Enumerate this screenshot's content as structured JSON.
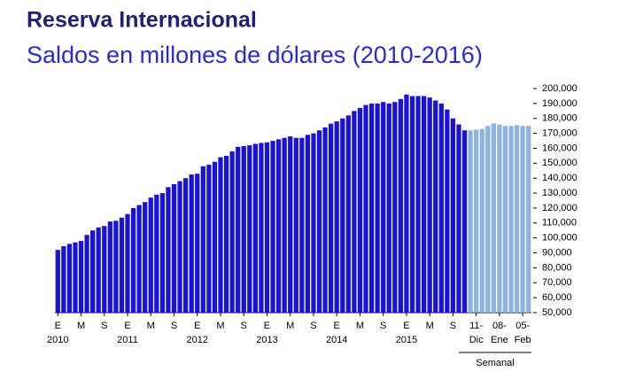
{
  "chart_data": {
    "type": "bar",
    "title": "Reserva Internacional",
    "subtitle": "Saldos en millones de dólares (2010-2016)",
    "annotation": "Semanal",
    "categories": [
      "E",
      null,
      null,
      null,
      "M",
      null,
      null,
      null,
      "S",
      null,
      null,
      null,
      "E",
      null,
      null,
      null,
      "M",
      null,
      null,
      null,
      "S",
      null,
      null,
      null,
      "E",
      null,
      null,
      null,
      "M",
      null,
      null,
      null,
      "S",
      null,
      null,
      null,
      "E",
      null,
      null,
      null,
      "M",
      null,
      null,
      null,
      "S",
      null,
      null,
      null,
      "E",
      null,
      null,
      null,
      "M",
      null,
      null,
      null,
      "S",
      null,
      null,
      null,
      "E",
      null,
      null,
      null,
      "M",
      null,
      null,
      null,
      "S",
      null,
      null,
      null,
      "11-",
      null,
      null,
      null,
      "08-",
      null,
      null,
      null,
      "05-",
      null
    ],
    "categories_row2": [
      "2010",
      null,
      null,
      null,
      null,
      null,
      null,
      null,
      null,
      null,
      null,
      null,
      "2011",
      null,
      null,
      null,
      null,
      null,
      null,
      null,
      null,
      null,
      null,
      null,
      "2012",
      null,
      null,
      null,
      null,
      null,
      null,
      null,
      null,
      null,
      null,
      null,
      "2013",
      null,
      null,
      null,
      null,
      null,
      null,
      null,
      null,
      null,
      null,
      null,
      "2014",
      null,
      null,
      null,
      null,
      null,
      null,
      null,
      null,
      null,
      null,
      null,
      "2015",
      null,
      null,
      null,
      null,
      null,
      null,
      null,
      null,
      null,
      null,
      null,
      "Dic",
      null,
      null,
      null,
      "Ene",
      null,
      null,
      null,
      "Feb",
      null
    ],
    "series": [
      {
        "color": "#1a12d6",
        "values": [
          92000,
          94500,
          96000,
          97000,
          98000,
          102000,
          105000,
          107000,
          108000,
          111000,
          111500,
          113600,
          116000,
          120000,
          122000,
          124000,
          127000,
          129000,
          130000,
          134000,
          136000,
          138000,
          140000,
          142500,
          143000,
          148000,
          149000,
          151000,
          154000,
          155000,
          158000,
          161000,
          161500,
          162000,
          163000,
          163600,
          164000,
          165000,
          166000,
          167000,
          168000,
          167000,
          167000,
          169000,
          170000,
          172000,
          174000,
          176500,
          178000,
          180000,
          182000,
          185000,
          187000,
          189000,
          190000,
          190000,
          191000,
          190000,
          191000,
          193000,
          196000,
          195000,
          195000,
          195000,
          194000,
          192000,
          190000,
          186000,
          180000,
          176000,
          172000,
          null,
          null,
          null,
          null,
          null,
          null,
          null,
          null,
          null,
          null,
          null
        ]
      },
      {
        "color": "#8db3e2",
        "values": [
          null,
          null,
          null,
          null,
          null,
          null,
          null,
          null,
          null,
          null,
          null,
          null,
          null,
          null,
          null,
          null,
          null,
          null,
          null,
          null,
          null,
          null,
          null,
          null,
          null,
          null,
          null,
          null,
          null,
          null,
          null,
          null,
          null,
          null,
          null,
          null,
          null,
          null,
          null,
          null,
          null,
          null,
          null,
          null,
          null,
          null,
          null,
          null,
          null,
          null,
          null,
          null,
          null,
          null,
          null,
          null,
          null,
          null,
          null,
          null,
          null,
          null,
          null,
          null,
          null,
          null,
          null,
          null,
          null,
          null,
          null,
          172000,
          172500,
          173000,
          175000,
          176700,
          176000,
          175000,
          175000,
          175500,
          175000,
          175000
        ]
      }
    ],
    "ylim": [
      50000,
      200000
    ],
    "yticks": [
      {
        "value": 50000,
        "label": "50,000"
      },
      {
        "value": 60000,
        "label": "60,000"
      },
      {
        "value": 70000,
        "label": "70,000"
      },
      {
        "value": 80000,
        "label": "80,000"
      },
      {
        "value": 90000,
        "label": "90,000"
      },
      {
        "value": 100000,
        "label": "100,000"
      },
      {
        "value": 110000,
        "label": "110,000"
      },
      {
        "value": 120000,
        "label": "120,000"
      },
      {
        "value": 130000,
        "label": "130,000"
      },
      {
        "value": 140000,
        "label": "140,000"
      },
      {
        "value": 150000,
        "label": "150,000"
      },
      {
        "value": 160000,
        "label": "160,000"
      },
      {
        "value": 170000,
        "label": "170,000"
      },
      {
        "value": 180000,
        "label": "180,000"
      },
      {
        "value": 190000,
        "label": "190,000"
      },
      {
        "value": 200000,
        "label": "200,000"
      }
    ],
    "grid": false
  }
}
